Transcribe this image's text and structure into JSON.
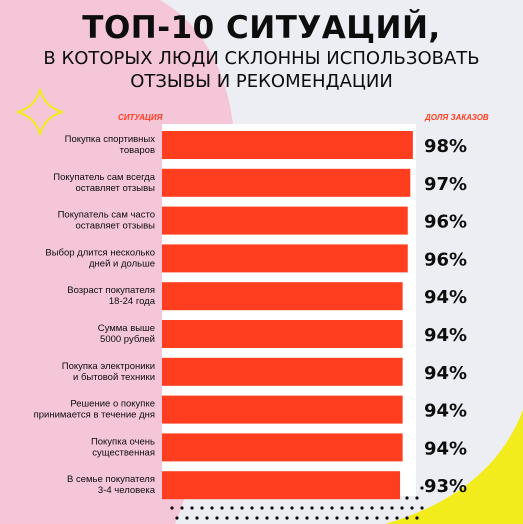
{
  "header": {
    "title": "ТОП-10 СИТУАЦИЙ,",
    "subtitle_line1": "В КОТОРЫХ ЛЮДИ СКЛОННЫ ИСПОЛЬЗОВАТЬ",
    "subtitle_line2": "ОТЗЫВЫ И РЕКОМЕНДАЦИИ"
  },
  "columns": {
    "situation": "СИТУАЦИЯ",
    "share": "ДОЛЯ ЗАКАЗОВ"
  },
  "colors": {
    "bar": "#ff3d1f",
    "text": "#0d0d0d",
    "background": "#eceef3",
    "pink": "#f4c6d7",
    "yellow": "#f3ec1d"
  },
  "chart_data": {
    "type": "bar",
    "orientation": "horizontal",
    "categories": [
      [
        "Покупка спортивных",
        "товаров"
      ],
      [
        "Покупатель сам всегда",
        "оставляет отзывы"
      ],
      [
        "Покупатель сам часто",
        "оставляет отзывы"
      ],
      [
        "Выбор длится несколько",
        "дней и дольше"
      ],
      [
        "Возраст покупателя",
        "18-24 года"
      ],
      [
        "Сумма выше",
        "5000 рублей"
      ],
      [
        "Покупка электроники",
        "и бытовой техники"
      ],
      [
        "Решение о покупке",
        "принимается в течение дня"
      ],
      [
        "Покупка очень",
        "существенная"
      ],
      [
        "В семье покупателя",
        "3-4 человека"
      ]
    ],
    "values": [
      98,
      97,
      96,
      96,
      94,
      94,
      94,
      94,
      94,
      93
    ],
    "value_labels": [
      "98%",
      "97%",
      "96%",
      "96%",
      "94%",
      "94%",
      "94%",
      "94%",
      "94%",
      "93%"
    ],
    "xlim": [
      0,
      100
    ]
  }
}
